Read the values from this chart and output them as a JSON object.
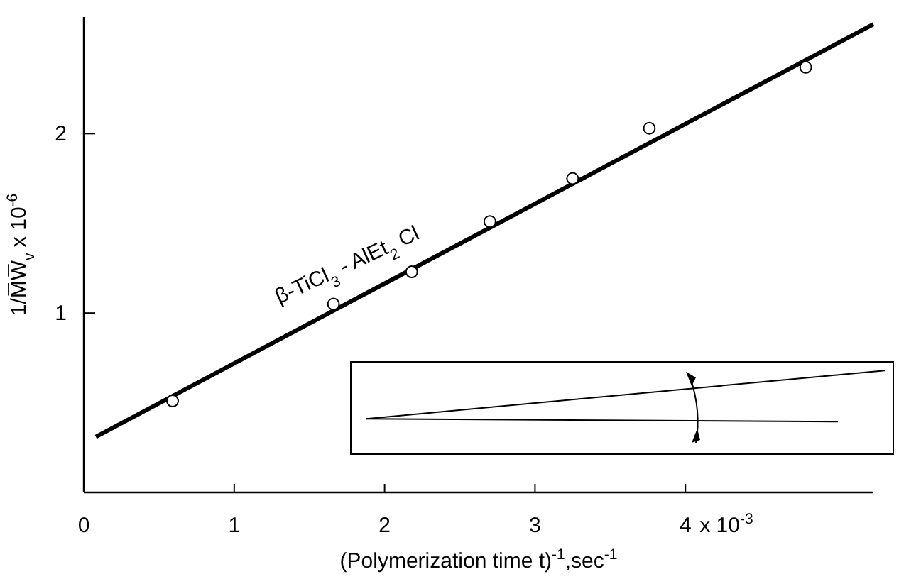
{
  "chart_data": {
    "type": "scatter",
    "xlabel": "(Polymerization time t)$^{-1}$,sec$^{-1}$",
    "ylabel": "1/M̅W̅$_{v}$ x 10$^{-6}$",
    "xlim": [
      0,
      5.25
    ],
    "ylim": [
      0,
      2.65
    ],
    "xticks": [
      0,
      1,
      2,
      3,
      4
    ],
    "yticks": [
      1,
      2
    ],
    "grid": false,
    "marker": "circle",
    "series": [
      {
        "color": "#000000",
        "x": [
          0.59,
          1.66,
          2.18,
          2.7,
          3.25,
          3.76,
          4.8
        ],
        "values": [
          0.51,
          1.05,
          1.23,
          1.51,
          1.75,
          2.03,
          2.37
        ]
      },
      {
        "type": "line",
        "marker": "none",
        "color": "#000000",
        "x": [
          0.08,
          5.25
        ],
        "values": [
          0.31,
          2.61
        ]
      }
    ],
    "annotations": [
      "β-TiCl$_{3}$ - AlEt$_{2}$ Cl",
      "x 10$^{-3}$"
    ]
  }
}
